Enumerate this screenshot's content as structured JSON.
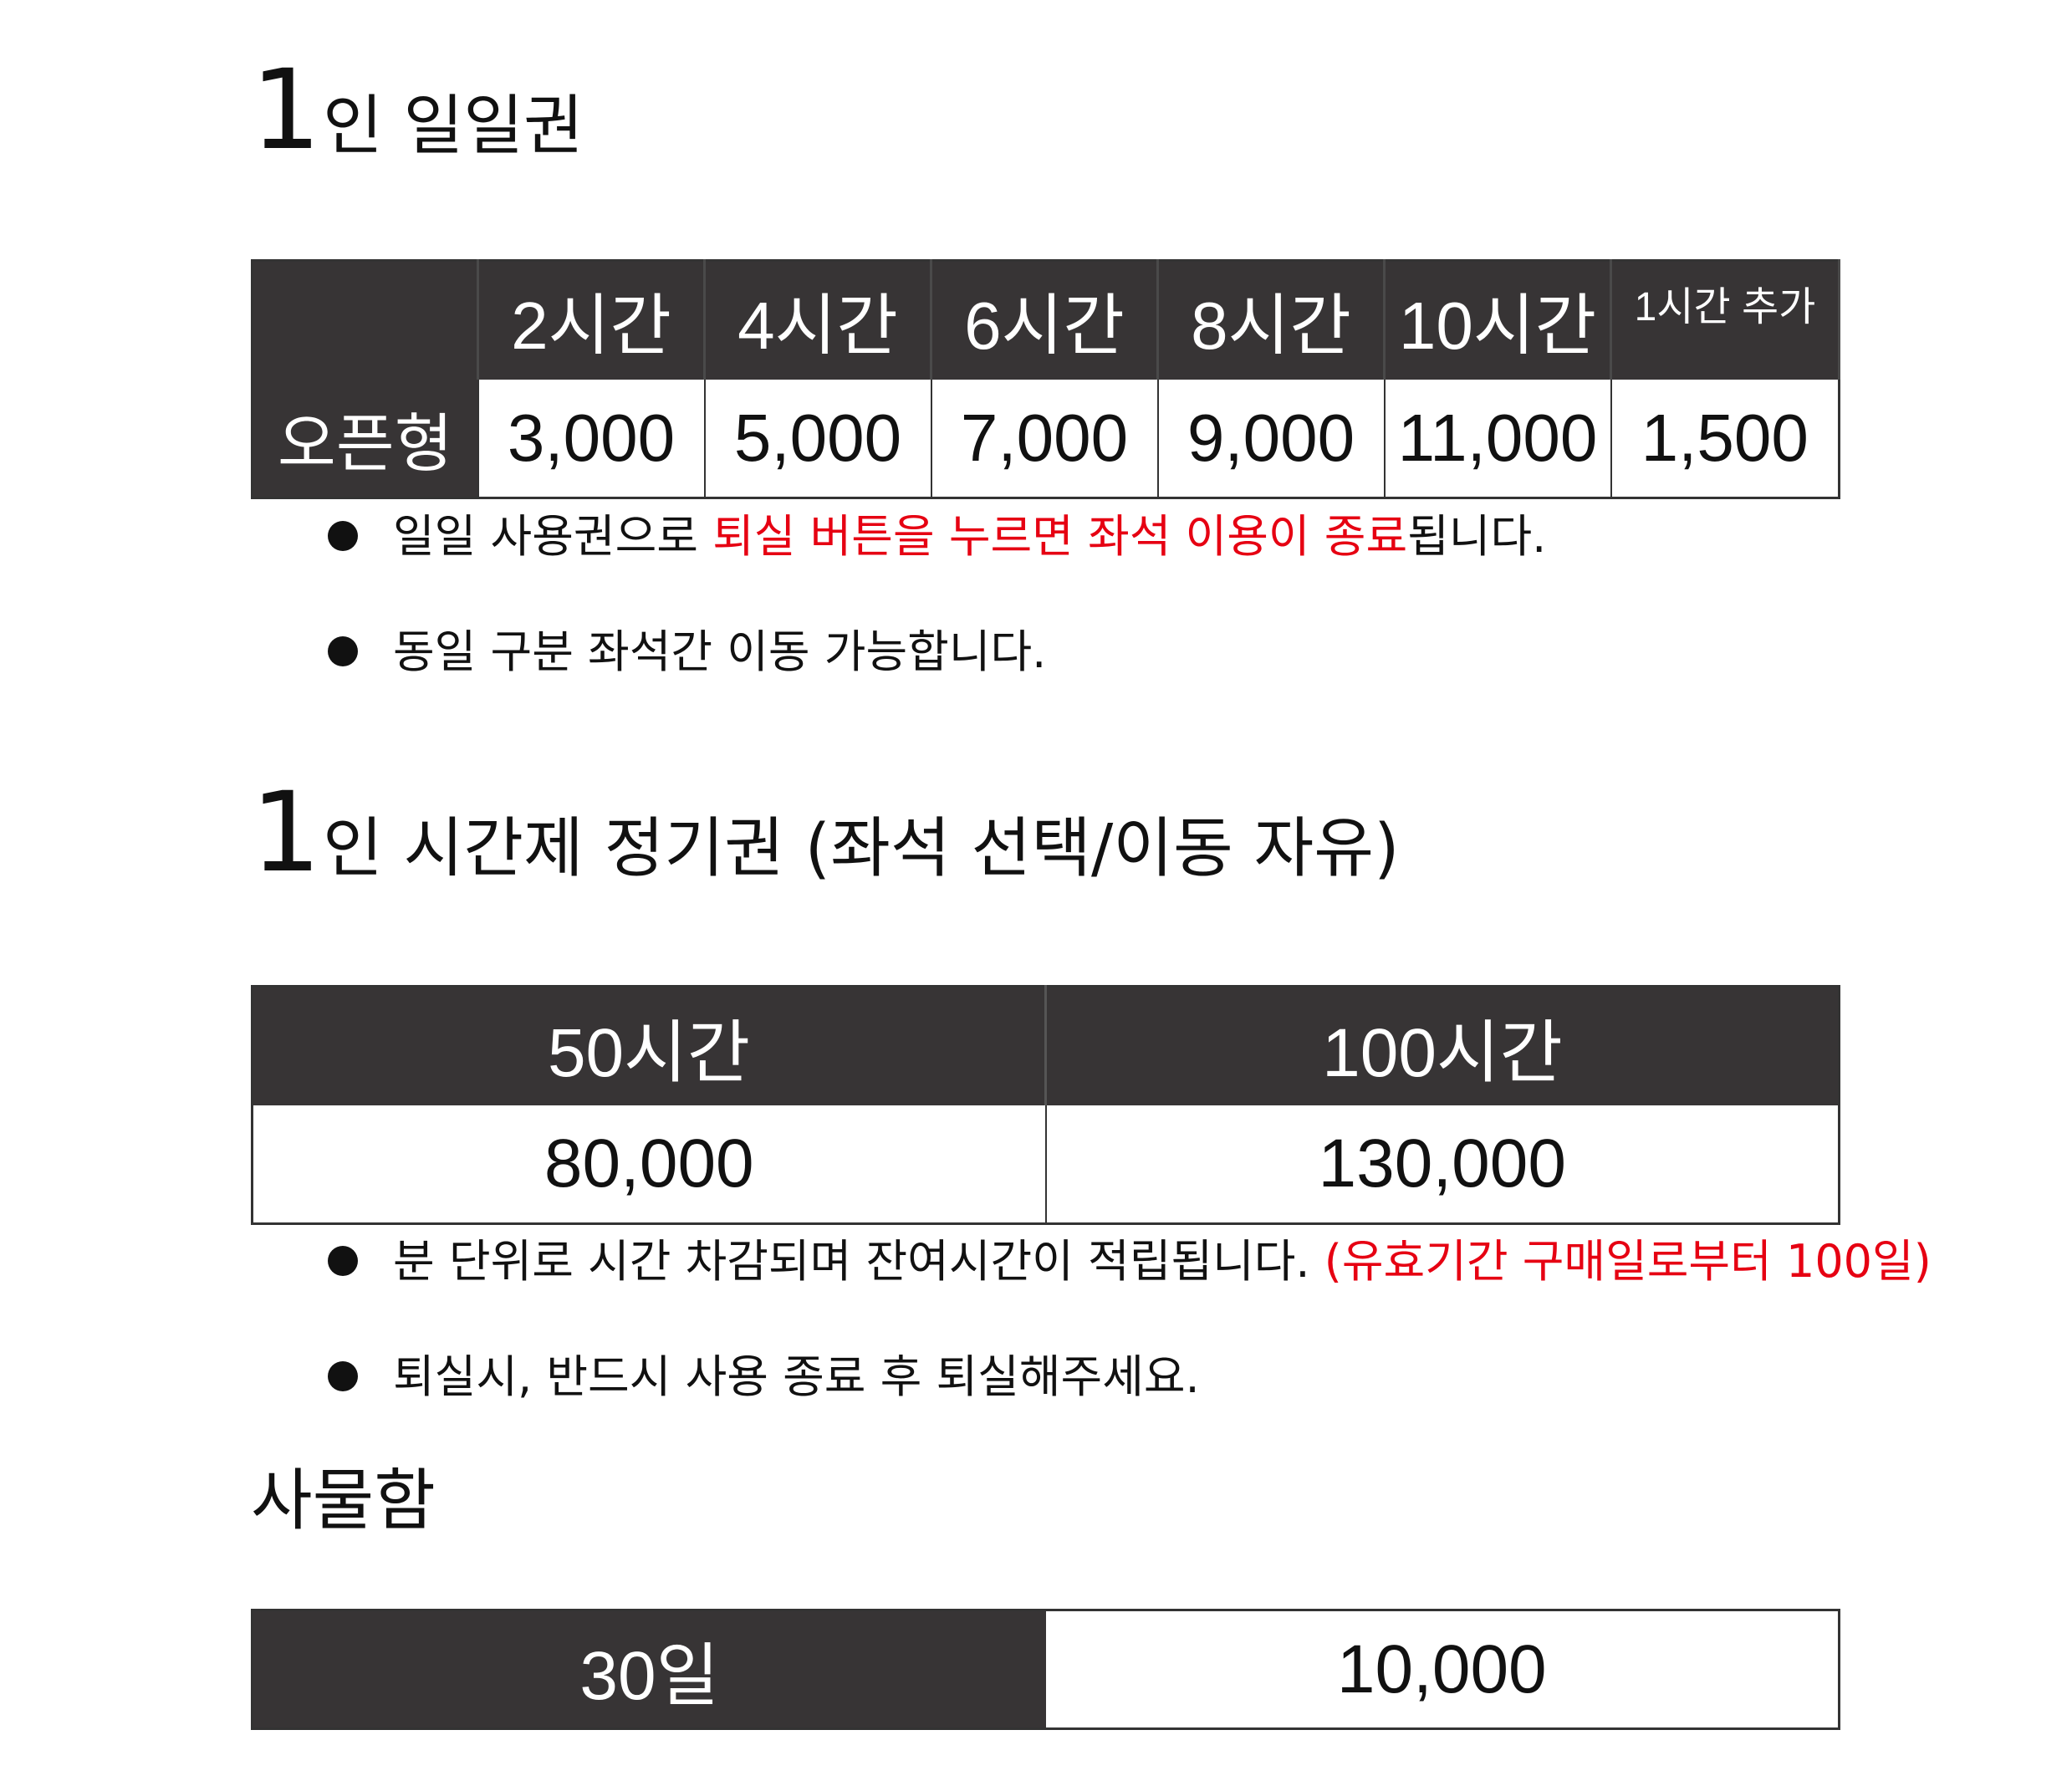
{
  "daily": {
    "title_num": "1",
    "title_rest": "인 일일권",
    "headers": [
      "",
      "2시간",
      "4시간",
      "6시간",
      "8시간",
      "10시간",
      "1시간 추가"
    ],
    "row_label": "오픈형",
    "prices": [
      "3,000",
      "5,000",
      "7,000",
      "9,000",
      "11,000",
      "1,500"
    ],
    "notes": [
      {
        "before": "일일 사용권으로 ",
        "highlight": "퇴실 버튼을 누르면 좌석 이용이 종료",
        "after": "됩니다."
      },
      {
        "before": "동일 구분 좌석간 이동 가능합니다.",
        "highlight": "",
        "after": ""
      }
    ]
  },
  "period": {
    "title_num": "1",
    "title_rest": "인 시간제 정기권 (좌석 선택/이동 자유)",
    "headers": [
      "50시간",
      "100시간"
    ],
    "prices": [
      "80,000",
      "130,000"
    ],
    "notes": [
      {
        "before": "분 단위로 시간 차감되며 잔여시간이 적립됩니다. ",
        "highlight": "(유효기간 구매일로부터 100일)",
        "after": ""
      },
      {
        "before": "퇴실시, 반드시 사용 종료 후 퇴실해주세요.",
        "highlight": "",
        "after": ""
      }
    ]
  },
  "locker": {
    "title": "사물함",
    "period": "30일",
    "price": "10,000"
  },
  "colors": {
    "dark_cell": "#373435",
    "highlight": "#e60012"
  }
}
